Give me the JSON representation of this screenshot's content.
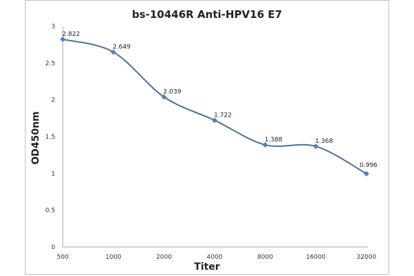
{
  "chart_data": {
    "type": "line",
    "title": "bs-10446R Anti-HPV16 E7",
    "xlabel": "Titer",
    "ylabel": "OD450nm",
    "categories": [
      "500",
      "1000",
      "2000",
      "4000",
      "8000",
      "16000",
      "32000"
    ],
    "series": [
      {
        "name": "OD450nm",
        "values": [
          2.822,
          2.649,
          2.039,
          1.722,
          1.388,
          1.368,
          0.996
        ]
      }
    ],
    "data_labels": [
      "2.822",
      "2.649",
      "2.039",
      "1.722",
      "1.388",
      "1.368",
      "0.996"
    ],
    "ylim": [
      0,
      3
    ],
    "yticks": [
      "0",
      "0.5",
      "1",
      "1.5",
      "2",
      "2.5",
      "3"
    ],
    "grid": false,
    "legend": "none",
    "colors": {
      "line": "#4a6f96",
      "marker": "#4f81bd",
      "axis": "#a6a6a6",
      "frame": "#bfbfbf"
    }
  }
}
